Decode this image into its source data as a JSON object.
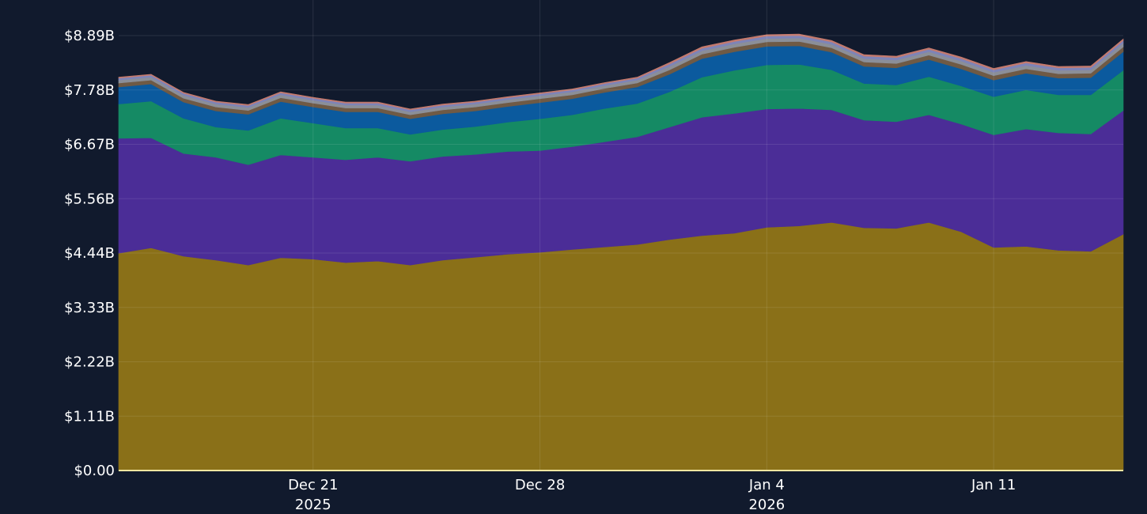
{
  "chart_data": {
    "type": "area",
    "stacked": true,
    "title": "",
    "xlabel": "",
    "ylabel": "",
    "x_start": "2025-12-15",
    "x_end": "2026-01-15",
    "ylim": [
      0,
      8.89
    ],
    "y_unit": "B",
    "y_ticks": [
      "$0.00",
      "$1.11B",
      "$2.22B",
      "$3.33B",
      "$4.44B",
      "$5.56B",
      "$6.67B",
      "$7.78B",
      "$8.89B"
    ],
    "x_ticks": [
      {
        "date": "2025-12-21",
        "label": "Dec 21",
        "sublabel": "2025"
      },
      {
        "date": "2025-12-28",
        "label": "Dec 28",
        "sublabel": ""
      },
      {
        "date": "2026-01-04",
        "label": "Jan 4",
        "sublabel": "2026"
      },
      {
        "date": "2026-01-11",
        "label": "Jan 11",
        "sublabel": ""
      }
    ],
    "grid": true,
    "legend": "none",
    "colors": {
      "background": "#111a2d",
      "grid": "#26324a",
      "tick_text": "#ffffff",
      "baseline": "#f0e6a0"
    },
    "series": [
      {
        "color": "#8a7018",
        "values": [
          4.44,
          4.55,
          4.38,
          4.3,
          4.2,
          4.35,
          4.32,
          4.25,
          4.28,
          4.2,
          4.3,
          4.36,
          4.42,
          4.46,
          4.52,
          4.57,
          4.62,
          4.72,
          4.8,
          4.85,
          4.97,
          5.0,
          5.07,
          4.96,
          4.95,
          5.07,
          4.88,
          4.56,
          4.58,
          4.5,
          4.48,
          4.83
        ]
      },
      {
        "color": "#4b2d97",
        "values": [
          2.35,
          2.25,
          2.1,
          2.1,
          2.05,
          2.1,
          2.08,
          2.1,
          2.12,
          2.12,
          2.12,
          2.1,
          2.1,
          2.08,
          2.1,
          2.15,
          2.2,
          2.3,
          2.42,
          2.45,
          2.42,
          2.4,
          2.3,
          2.2,
          2.18,
          2.2,
          2.2,
          2.3,
          2.4,
          2.4,
          2.4,
          2.53
        ]
      },
      {
        "color": "#158a64",
        "values": [
          0.7,
          0.75,
          0.72,
          0.62,
          0.7,
          0.75,
          0.7,
          0.65,
          0.6,
          0.55,
          0.55,
          0.57,
          0.6,
          0.65,
          0.65,
          0.68,
          0.68,
          0.72,
          0.82,
          0.88,
          0.9,
          0.9,
          0.82,
          0.75,
          0.75,
          0.78,
          0.78,
          0.78,
          0.8,
          0.78,
          0.8,
          0.82
        ]
      },
      {
        "color": "#0b5a9e",
        "values": [
          0.35,
          0.35,
          0.33,
          0.33,
          0.33,
          0.34,
          0.33,
          0.33,
          0.33,
          0.32,
          0.32,
          0.32,
          0.32,
          0.33,
          0.33,
          0.33,
          0.34,
          0.36,
          0.38,
          0.38,
          0.38,
          0.38,
          0.36,
          0.35,
          0.35,
          0.35,
          0.35,
          0.34,
          0.34,
          0.34,
          0.35,
          0.38
        ]
      },
      {
        "color": "#6f5a45",
        "values": [
          0.08,
          0.08,
          0.08,
          0.08,
          0.08,
          0.08,
          0.08,
          0.08,
          0.08,
          0.08,
          0.08,
          0.08,
          0.08,
          0.08,
          0.08,
          0.08,
          0.08,
          0.09,
          0.09,
          0.09,
          0.09,
          0.09,
          0.09,
          0.09,
          0.09,
          0.09,
          0.09,
          0.09,
          0.09,
          0.09,
          0.09,
          0.1
        ]
      },
      {
        "color": "#8b8f98",
        "values": [
          0.06,
          0.06,
          0.06,
          0.06,
          0.06,
          0.06,
          0.06,
          0.06,
          0.06,
          0.06,
          0.06,
          0.06,
          0.06,
          0.06,
          0.06,
          0.06,
          0.06,
          0.07,
          0.07,
          0.07,
          0.07,
          0.07,
          0.07,
          0.07,
          0.07,
          0.07,
          0.07,
          0.07,
          0.07,
          0.07,
          0.07,
          0.08
        ]
      },
      {
        "color": "#7e84b8",
        "values": [
          0.04,
          0.04,
          0.04,
          0.04,
          0.04,
          0.04,
          0.04,
          0.04,
          0.04,
          0.04,
          0.04,
          0.04,
          0.04,
          0.04,
          0.04,
          0.04,
          0.04,
          0.05,
          0.05,
          0.05,
          0.05,
          0.05,
          0.05,
          0.05,
          0.05,
          0.05,
          0.05,
          0.05,
          0.05,
          0.05,
          0.05,
          0.05
        ]
      },
      {
        "color": "#c47a6e",
        "values": [
          0.02,
          0.02,
          0.02,
          0.02,
          0.02,
          0.02,
          0.02,
          0.02,
          0.02,
          0.02,
          0.02,
          0.02,
          0.02,
          0.02,
          0.02,
          0.02,
          0.02,
          0.03,
          0.03,
          0.03,
          0.03,
          0.03,
          0.03,
          0.03,
          0.03,
          0.03,
          0.03,
          0.03,
          0.03,
          0.03,
          0.03,
          0.03
        ]
      }
    ]
  }
}
